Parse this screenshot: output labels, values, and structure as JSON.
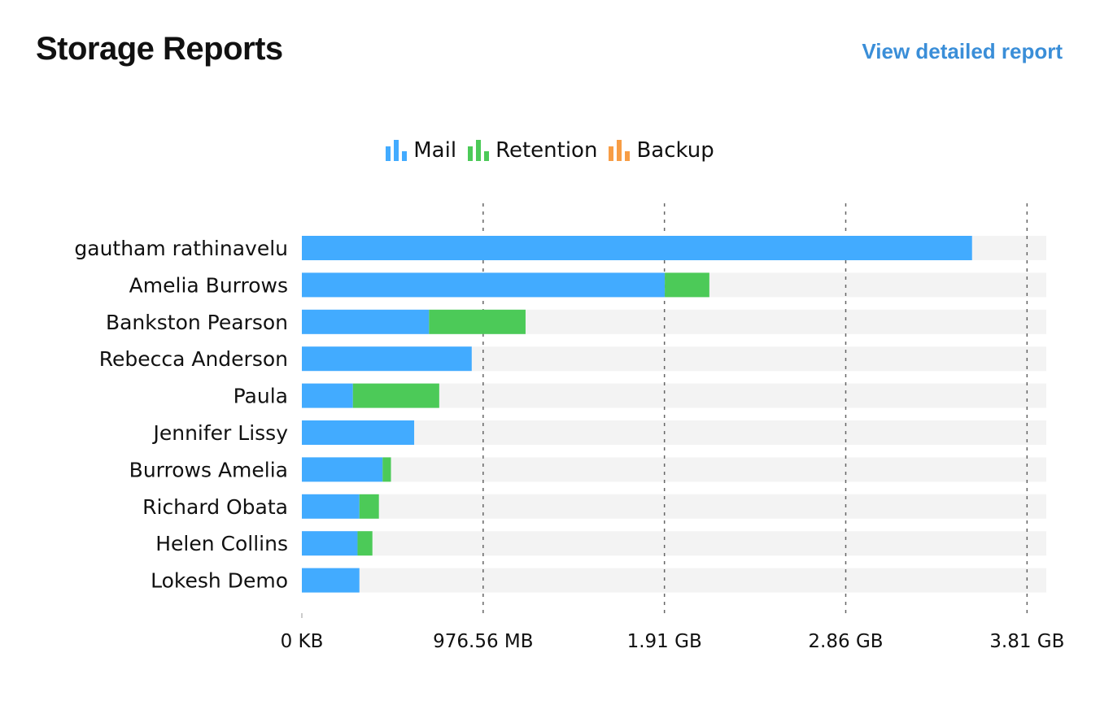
{
  "header": {
    "title": "Storage Reports",
    "detail_link": "View detailed report"
  },
  "legend": [
    {
      "label": "Mail",
      "color": "#42abff",
      "icon": "bar-chart-icon"
    },
    {
      "label": "Retention",
      "color": "#4cca58",
      "icon": "bar-chart-icon"
    },
    {
      "label": "Backup",
      "color": "#f79d45",
      "icon": "bar-chart-icon"
    }
  ],
  "chart_data": {
    "type": "bar",
    "orientation": "horizontal",
    "stacked": true,
    "categories": [
      "gautham rathinavelu",
      "Amelia Burrows",
      "Bankston Pearson",
      "Rebecca Anderson",
      "Paula",
      "Jennifer Lissy",
      "Burrows Amelia",
      "Richard Obata",
      "Helen Collins",
      "Lokesh Demo"
    ],
    "series": [
      {
        "name": "Mail",
        "color": "#42abff",
        "values": [
          3610,
          1955,
          685,
          915,
          275,
          605,
          435,
          310,
          300,
          310
        ]
      },
      {
        "name": "Retention",
        "color": "#4cca58",
        "values": [
          0,
          240,
          520,
          0,
          465,
          0,
          45,
          105,
          80,
          0
        ]
      },
      {
        "name": "Backup",
        "color": "#f79d45",
        "values": [
          0,
          0,
          0,
          0,
          0,
          0,
          0,
          0,
          0,
          0
        ]
      }
    ],
    "unit": "MB",
    "xlim": [
      0,
      4010
    ],
    "xticks": [
      {
        "value": 0,
        "label": "0 KB"
      },
      {
        "value": 976.56,
        "label": "976.56 MB"
      },
      {
        "value": 1953.12,
        "label": "1.91 GB"
      },
      {
        "value": 2929.68,
        "label": "2.86 GB"
      },
      {
        "value": 3906.24,
        "label": "3.81 GB"
      }
    ],
    "grid": "vertical-dashed",
    "legend_position": "top-center",
    "track_color": "#f3f3f3"
  }
}
